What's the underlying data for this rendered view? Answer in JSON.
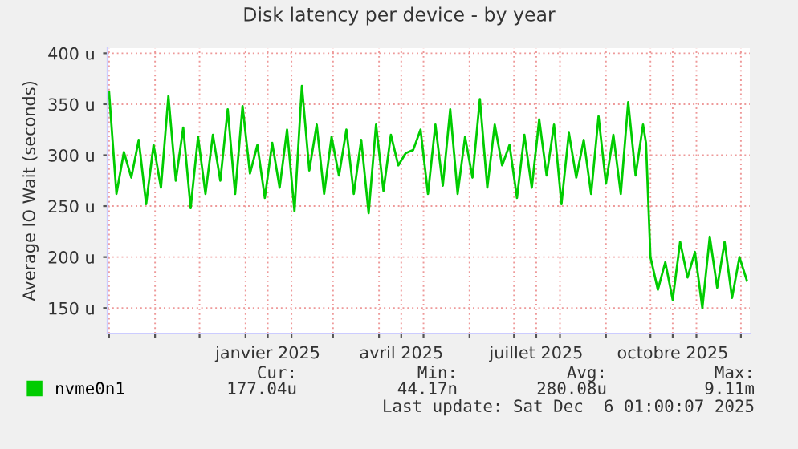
{
  "chart_data": {
    "type": "line",
    "title": "Disk latency per device - by year",
    "ylabel": "Average IO Wait (seconds)",
    "x": [
      "2024-10-01",
      "2024-10-06",
      "2024-10-11",
      "2024-10-16",
      "2024-10-21",
      "2024-10-26",
      "2024-10-31",
      "2024-11-05",
      "2024-11-10",
      "2024-11-15",
      "2024-11-20",
      "2024-11-25",
      "2024-11-30",
      "2024-12-05",
      "2024-12-10",
      "2024-12-15",
      "2024-12-20",
      "2024-12-25",
      "2024-12-30",
      "2025-01-04",
      "2025-01-09",
      "2025-01-14",
      "2025-01-19",
      "2025-01-24",
      "2025-01-29",
      "2025-02-03",
      "2025-02-08",
      "2025-02-13",
      "2025-02-18",
      "2025-02-23",
      "2025-02-28",
      "2025-03-05",
      "2025-03-10",
      "2025-03-15",
      "2025-03-20",
      "2025-03-25",
      "2025-03-30",
      "2025-04-04",
      "2025-04-09",
      "2025-04-14",
      "2025-04-19",
      "2025-04-24",
      "2025-04-29",
      "2025-05-04",
      "2025-05-09",
      "2025-05-14",
      "2025-05-19",
      "2025-05-24",
      "2025-05-29",
      "2025-06-03",
      "2025-06-08",
      "2025-06-13",
      "2025-06-18",
      "2025-06-23",
      "2025-06-28",
      "2025-07-03",
      "2025-07-08",
      "2025-07-13",
      "2025-07-18",
      "2025-07-23",
      "2025-07-28",
      "2025-08-02",
      "2025-08-07",
      "2025-08-12",
      "2025-08-17",
      "2025-08-22",
      "2025-08-27",
      "2025-09-01",
      "2025-09-06",
      "2025-09-11",
      "2025-09-16",
      "2025-09-21",
      "2025-09-26",
      "2025-09-28",
      "2025-10-01",
      "2025-10-06",
      "2025-10-11",
      "2025-10-16",
      "2025-10-21",
      "2025-10-26",
      "2025-10-31",
      "2025-11-05",
      "2025-11-10",
      "2025-11-15",
      "2025-11-20",
      "2025-11-25",
      "2025-11-30",
      "2025-12-05"
    ],
    "series": [
      {
        "name": "nvme0n1",
        "color": "#00cc00",
        "values": [
          362,
          262,
          303,
          278,
          315,
          252,
          310,
          268,
          358,
          275,
          327,
          248,
          318,
          262,
          320,
          275,
          345,
          262,
          348,
          282,
          310,
          258,
          312,
          268,
          325,
          245,
          368,
          285,
          330,
          262,
          318,
          280,
          325,
          262,
          315,
          243,
          330,
          265,
          320,
          290,
          302,
          305,
          325,
          262,
          330,
          270,
          345,
          262,
          318,
          278,
          355,
          268,
          330,
          290,
          310,
          258,
          320,
          268,
          335,
          280,
          330,
          252,
          322,
          278,
          315,
          262,
          338,
          272,
          320,
          262,
          352,
          280,
          330,
          312,
          200,
          168,
          195,
          158,
          215,
          180,
          205,
          150,
          220,
          170,
          215,
          160,
          200,
          177
        ]
      }
    ],
    "xlim": [
      "2024-09-30",
      "2025-12-07"
    ],
    "xticks": [
      {
        "value": "2024-10-01",
        "label": null
      },
      {
        "value": "2024-11-01",
        "label": null
      },
      {
        "value": "2024-12-01",
        "label": null
      },
      {
        "value": "2025-01-01",
        "label": null
      },
      {
        "value": "2025-01-16",
        "label": "janvier 2025"
      },
      {
        "value": "2025-02-01",
        "label": null
      },
      {
        "value": "2025-03-01",
        "label": null
      },
      {
        "value": "2025-04-01",
        "label": null
      },
      {
        "value": "2025-04-16",
        "label": "avril 2025"
      },
      {
        "value": "2025-05-01",
        "label": null
      },
      {
        "value": "2025-06-01",
        "label": null
      },
      {
        "value": "2025-07-01",
        "label": null
      },
      {
        "value": "2025-07-16",
        "label": "juillet 2025"
      },
      {
        "value": "2025-08-01",
        "label": null
      },
      {
        "value": "2025-09-01",
        "label": null
      },
      {
        "value": "2025-10-01",
        "label": null
      },
      {
        "value": "2025-10-16",
        "label": "octobre 2025"
      },
      {
        "value": "2025-11-01",
        "label": null
      },
      {
        "value": "2025-12-01",
        "label": null
      }
    ],
    "ylim": [
      125,
      405
    ],
    "yticks": [
      {
        "value": 150,
        "label": "150 u"
      },
      {
        "value": 200,
        "label": "200 u"
      },
      {
        "value": 250,
        "label": "250 u"
      },
      {
        "value": 300,
        "label": "300 u"
      },
      {
        "value": 350,
        "label": "350 u"
      },
      {
        "value": 400,
        "label": "400 u"
      }
    ],
    "grid": true,
    "legend": "bottom",
    "marker": "none",
    "line_style": "solid",
    "annotations": [
      "Cur:",
      "Min:",
      "Avg:",
      "Max:",
      "177.04u",
      "44.17n",
      "280.08u",
      "9.11m",
      "Last update: Sat Dec  6 01:00:07 2025"
    ]
  }
}
